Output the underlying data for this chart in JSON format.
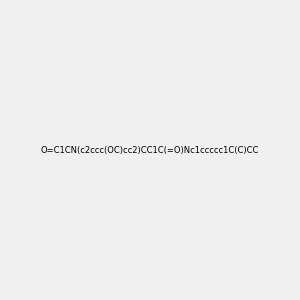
{
  "background_color": "#f0f0f0",
  "bond_color": "#000000",
  "atom_colors": {
    "N": "#0000ff",
    "O": "#ff0000",
    "C": "#000000",
    "H": "#4a9090"
  },
  "smiles": "O=C1CN(c2ccc(OC)cc2)CC1C(=O)Nc1ccccc1C(C)CC",
  "title": "",
  "figsize": [
    3.0,
    3.0
  ],
  "dpi": 100
}
